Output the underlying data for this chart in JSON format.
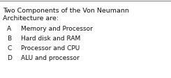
{
  "title_line1": "Two Components of the Von Neumann",
  "title_line2": "Architecture are:",
  "options": [
    {
      "letter": "A",
      "text": "Memory and Processor"
    },
    {
      "letter": "B",
      "text": "Hard disk and RAM"
    },
    {
      "letter": "C",
      "text": "Processor and CPU"
    },
    {
      "letter": "D",
      "text": "ALU and processor"
    }
  ],
  "bg_color": "#ffffff",
  "text_color": "#111111",
  "top_line_color": "#888888",
  "title_fontsize": 6.8,
  "option_fontsize": 6.5,
  "figwidth": 2.45,
  "figheight": 1.13,
  "dpi": 100
}
